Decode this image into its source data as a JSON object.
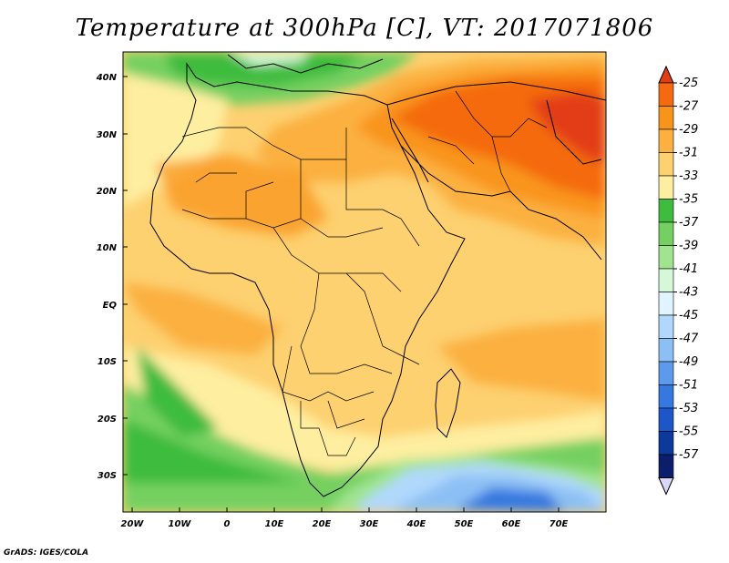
{
  "title": "Temperature at 300hPa [C], VT: 2017071806",
  "credit": "GrADS: IGES/COLA",
  "map": {
    "lon_range": [
      -22,
      80
    ],
    "lat_range": [
      -36,
      45
    ],
    "lat_ticks": [
      "40N",
      "30N",
      "20N",
      "10N",
      "EQ",
      "10S",
      "20S",
      "30S"
    ],
    "lon_ticks": [
      "20W",
      "10W",
      "0",
      "10E",
      "20E",
      "30E",
      "40E",
      "50E",
      "60E",
      "70E"
    ]
  },
  "colorbar": {
    "labels": [
      "-25",
      "-27",
      "-29",
      "-31",
      "-33",
      "-35",
      "-37",
      "-39",
      "-41",
      "-43",
      "-45",
      "-47",
      "-49",
      "-51",
      "-53",
      "-55",
      "-57"
    ],
    "colors": [
      "#e23c14",
      "#f46a10",
      "#f9941a",
      "#fbb040",
      "#fdd070",
      "#feeea0",
      "#3ebc3e",
      "#74d060",
      "#a0e490",
      "#d4f8d8",
      "#e0f4ff",
      "#b0d8fc",
      "#8cc0f4",
      "#5c9aec",
      "#3478e0",
      "#1c56c8",
      "#0c3a9c",
      "#0a1e6c",
      "#d8d8f8"
    ]
  }
}
